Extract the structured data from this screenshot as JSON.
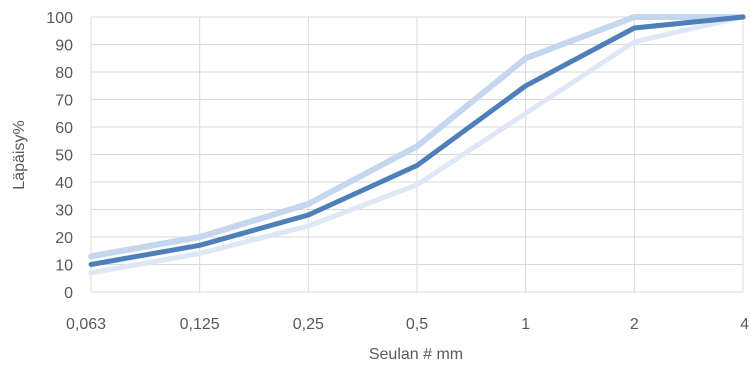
{
  "chart_data": {
    "type": "line",
    "categories": [
      "0,063",
      "0,125",
      "0,25",
      "0,5",
      "1",
      "2",
      "4"
    ],
    "y_ticks": [
      "0",
      "10",
      "20",
      "30",
      "40",
      "50",
      "60",
      "70",
      "80",
      "90",
      "100"
    ],
    "ylim": [
      0,
      100
    ],
    "xlabel": "Seulan # mm",
    "ylabel": "Läpäisy%",
    "grid": true,
    "legend": "none",
    "series": [
      {
        "values": [
          13,
          20,
          32,
          53,
          85,
          100,
          100
        ],
        "color": "#c5d6ef"
      },
      {
        "values": [
          7,
          14,
          24,
          39,
          65,
          91,
          100
        ],
        "color": "#dde7f5"
      },
      {
        "values": [
          10,
          17,
          28,
          46,
          75,
          96,
          100
        ],
        "color": "#4f7fb9"
      }
    ]
  }
}
